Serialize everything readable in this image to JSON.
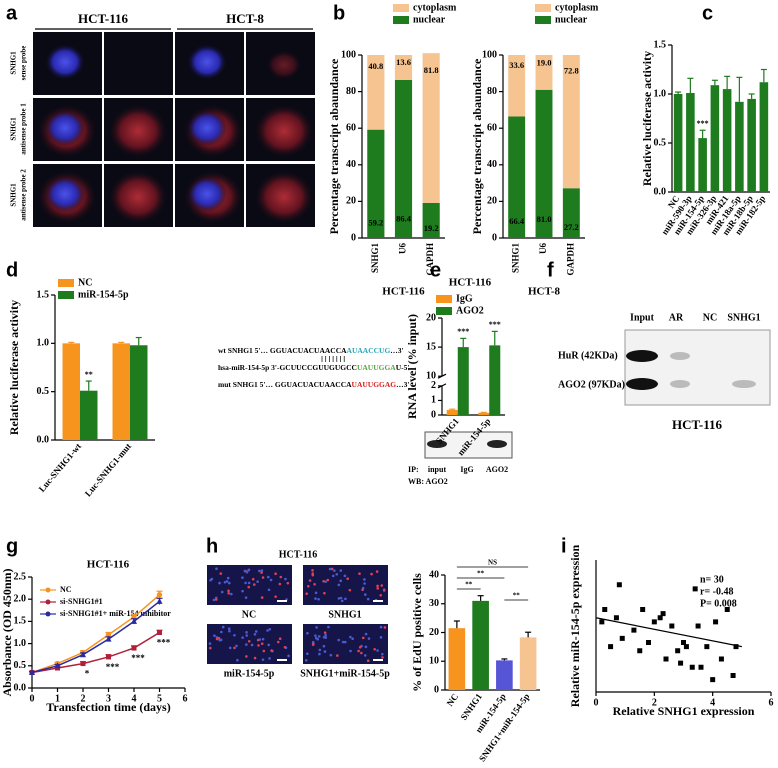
{
  "panel_labels": [
    "a",
    "b",
    "c",
    "d",
    "e",
    "f",
    "g",
    "h",
    "i"
  ],
  "panel_a": {
    "columns": [
      "HCT-116",
      "HCT-8"
    ],
    "rows": [
      [
        "SNHG1",
        "sense probe"
      ],
      [
        "SNHG1",
        "antisense probe 1"
      ],
      [
        "SNHG1",
        "antisense probe 2"
      ]
    ]
  },
  "panel_d_sequences": [
    [
      {
        "text": "wt SNHG1  5'…  GGUACUACUAACCA",
        "color": "#000000"
      },
      {
        "text": "AUAACCUG",
        "color": "#2aa8b8"
      },
      {
        "text": "…3'",
        "color": "#000000"
      }
    ],
    [
      {
        "text": "hsa-miR-154-5p  3'-GCUUCCGUUGUGCC",
        "color": "#000000"
      },
      {
        "text": "UAUUGGA",
        "color": "#5aa83a"
      },
      {
        "text": "U-5'",
        "color": "#000000"
      }
    ],
    [
      {
        "text": "mut SNHG1  5'…  GGUACUACUAACCA",
        "color": "#000000"
      },
      {
        "text": "UAUUGGAG",
        "color": "#d42020"
      },
      {
        "text": "…3'",
        "color": "#000000"
      }
    ]
  ],
  "panel_e_blot": {
    "ip": "IP:",
    "wb": "WB: AGO2",
    "lanes": [
      "input",
      "IgG",
      "AGO2"
    ]
  },
  "panel_f": {
    "lanes": [
      "Input",
      "AR",
      "NC",
      "SNHG1"
    ],
    "rows": [
      "HuR (42KDa)",
      "AGO2 (97KDa)"
    ],
    "caption": "HCT-116"
  },
  "panel_h_images": {
    "title": "HCT-116",
    "labels": [
      "NC",
      "SNHG1",
      "miR-154-5p",
      "SNHG1+miR-154-5p"
    ]
  },
  "chart_data": [
    {
      "type": "bar",
      "stacked": true,
      "show_values": true,
      "ylabel": "Percentage transcript abaundance",
      "caption": "HCT-116",
      "categories": [
        "SNHG1",
        "U6",
        "GAPDH"
      ],
      "series": [
        {
          "name": "nuclear",
          "color": "#1e7b1e",
          "values": [
            59.2,
            86.4,
            19.2
          ]
        },
        {
          "name": "cytoplasm",
          "color": "#f5c490",
          "values": [
            40.8,
            13.6,
            81.8
          ]
        }
      ],
      "ylim": [
        0,
        100
      ],
      "yticks": [
        0,
        20,
        40,
        60,
        80,
        100
      ]
    },
    {
      "type": "bar",
      "stacked": true,
      "show_values": true,
      "ylabel": "Percentage transcript abaundance",
      "caption": "HCT-8",
      "categories": [
        "SNHG1",
        "U6",
        "GAPDH"
      ],
      "series": [
        {
          "name": "nuclear",
          "color": "#1e7b1e",
          "values": [
            66.4,
            81.0,
            27.2
          ],
          "value_labels": [
            "66.4",
            "81.0",
            "27.2"
          ]
        },
        {
          "name": "cytoplasm",
          "color": "#f5c490",
          "values": [
            33.6,
            19.0,
            72.8
          ],
          "value_labels": [
            "33.6",
            "19.0",
            "72.8"
          ]
        }
      ],
      "ylim": [
        0,
        100
      ],
      "yticks": [
        0,
        20,
        40,
        60,
        80,
        100
      ]
    },
    {
      "type": "bar",
      "ylabel": "Relative luciferase activity",
      "categories": [
        "NC",
        "miR-590-3p",
        "miR-154-5p",
        "miR-326-3p",
        "miR-421",
        "miR-18a-5p",
        "miR-18b-5p",
        "miR-182-5p"
      ],
      "series": [
        {
          "color": "#1e7b1e",
          "values": [
            1.0,
            1.01,
            0.55,
            1.09,
            1.05,
            0.92,
            0.95,
            1.12
          ],
          "errors": [
            0.02,
            0.15,
            0.08,
            0.05,
            0.13,
            0.25,
            0.05,
            0.13
          ],
          "significance": [
            null,
            null,
            "***",
            null,
            null,
            null,
            null,
            null
          ]
        }
      ],
      "ylim": [
        0,
        1.5
      ],
      "yticks": [
        {
          "value": 0,
          "label": "0.0"
        },
        0.5,
        {
          "value": 1,
          "label": "1.0"
        },
        1.5
      ]
    },
    {
      "type": "bar",
      "ylabel": "Relative luciferase activity",
      "categories": [
        "Luc-SNHG1-wt",
        "Luc-SNHG1-mut"
      ],
      "series": [
        {
          "name": "NC",
          "color": "#f7941d",
          "values": [
            1.0,
            1.0
          ],
          "errors": [
            0.01,
            0.01
          ]
        },
        {
          "name": "miR-154-5p",
          "color": "#1e7b1e",
          "values": [
            0.51,
            0.98
          ],
          "errors": [
            0.1,
            0.08
          ],
          "significance": [
            "**",
            null
          ]
        }
      ],
      "ylim": [
        0,
        1.5
      ],
      "yticks": [
        {
          "value": 0,
          "label": "0.0"
        },
        0.5,
        {
          "value": 1,
          "label": "1.0"
        },
        1.5
      ]
    },
    {
      "type": "bar",
      "title": "HCT-116",
      "ylabel": "RNA level (% input)",
      "categories": [
        "SNHG1",
        "miR-154-5p"
      ],
      "series": [
        {
          "name": "IgG",
          "color": "#f7941d",
          "values": [
            0.35,
            0.15
          ],
          "errors": [
            0.05,
            0.03
          ]
        },
        {
          "name": "AGO2",
          "color": "#1e7b1e",
          "values": [
            15,
            15.3
          ],
          "errors": [
            1.5,
            2.4
          ],
          "significance": [
            "***",
            "***"
          ]
        }
      ],
      "ylim": [
        0,
        20
      ],
      "ybreak": [
        2,
        10
      ],
      "yticks": [
        0,
        1,
        2,
        10,
        15,
        20
      ]
    },
    {
      "type": "line",
      "title": "HCT-116",
      "xlabel": "Transfection time (days)",
      "ylabel": "Absorbance (OD 450nm)",
      "x": [
        0,
        1,
        2,
        3,
        4,
        5
      ],
      "series": [
        {
          "name": "NC",
          "color": "#f7941d",
          "marker": "circle",
          "values": [
            0.35,
            0.55,
            0.8,
            1.2,
            1.6,
            2.1
          ],
          "errors": [
            0.02,
            0.03,
            0.04,
            0.05,
            0.06,
            0.08
          ]
        },
        {
          "name": "si-SNHG1#1",
          "color": "#b0203a",
          "marker": "square",
          "values": [
            0.35,
            0.45,
            0.55,
            0.7,
            0.9,
            1.25
          ],
          "errors": [
            0.02,
            0.03,
            0.04,
            0.05,
            0.05,
            0.05
          ],
          "significance": [
            null,
            null,
            "*",
            "***",
            "***",
            "***"
          ]
        },
        {
          "name": "si-SNHG1#1+ miR-154 inhibitor",
          "color": "#2a2aa0",
          "marker": "triangle",
          "values": [
            0.35,
            0.5,
            0.75,
            1.1,
            1.5,
            1.95
          ],
          "errors": [
            0.02,
            0.03,
            0.04,
            0.05,
            0.06,
            0.07
          ]
        }
      ],
      "xlim": [
        0,
        6
      ],
      "xticks": [
        0,
        1,
        2,
        3,
        4,
        5,
        6
      ],
      "ylim": [
        0,
        2.5
      ],
      "yticks": [
        {
          "value": 0,
          "label": "0.0"
        },
        0.5,
        {
          "value": 1,
          "label": "1.0"
        },
        1.5,
        {
          "value": 2,
          "label": "2.0"
        },
        2.5
      ]
    },
    {
      "type": "bar",
      "ylabel": "% of EdU positive cells",
      "categories": [
        "NC",
        "SNHG1",
        "miR-154-5p",
        "SNHG1+miR-154-5p"
      ],
      "series": [
        {
          "colors": [
            "#f7941d",
            "#1e7b1e",
            "#5555d5",
            "#f5c490"
          ],
          "values": [
            21.5,
            31,
            10.3,
            18.3
          ],
          "errors": [
            2.5,
            1.8,
            0.5,
            1.8
          ]
        }
      ],
      "comparisons": [
        {
          "pair": [
            "NC",
            "SNHG1+miR-154-5p"
          ],
          "label": "NS"
        },
        {
          "pair": [
            "NC",
            "miR-154-5p"
          ],
          "label": "**"
        },
        {
          "pair": [
            "NC",
            "SNHG1"
          ],
          "label": "**"
        },
        {
          "pair": [
            "miR-154-5p",
            "SNHG1+miR-154-5p"
          ],
          "label": "**"
        }
      ],
      "ylim": [
        0,
        40
      ],
      "yticks": [
        0,
        10,
        20,
        30,
        40
      ]
    },
    {
      "type": "scatter",
      "xlabel": "Relative SNHG1 expression",
      "ylabel": "Relative miR-154-5p expression",
      "color": "#000000",
      "x": [
        0.2,
        0.3,
        0.5,
        0.7,
        0.8,
        0.9,
        1.3,
        1.5,
        1.6,
        1.8,
        2.0,
        2.2,
        2.3,
        2.4,
        2.6,
        2.8,
        2.9,
        3.0,
        3.1,
        3.3,
        3.4,
        3.5,
        3.6,
        3.8,
        4.0,
        4.1,
        4.3,
        4.5,
        4.7,
        4.8
      ],
      "values": [
        0.85,
        1.0,
        0.55,
        0.9,
        1.3,
        0.65,
        0.75,
        0.5,
        1.0,
        0.6,
        0.85,
        0.9,
        0.95,
        0.4,
        0.8,
        0.5,
        0.35,
        0.6,
        0.55,
        0.3,
        1.25,
        0.8,
        0.3,
        0.55,
        0.15,
        0.85,
        0.4,
        1.0,
        0.2,
        0.55
      ],
      "trendline": {
        "x": [
          0,
          5
        ],
        "y": [
          0.9,
          0.55
        ]
      },
      "stats": [
        "n= 30",
        "r= -0.48",
        "P= 0.008"
      ],
      "xlim": [
        0,
        6
      ],
      "xticks": [
        0,
        2,
        4,
        6
      ],
      "ylim": [
        0,
        1.6
      ]
    }
  ]
}
